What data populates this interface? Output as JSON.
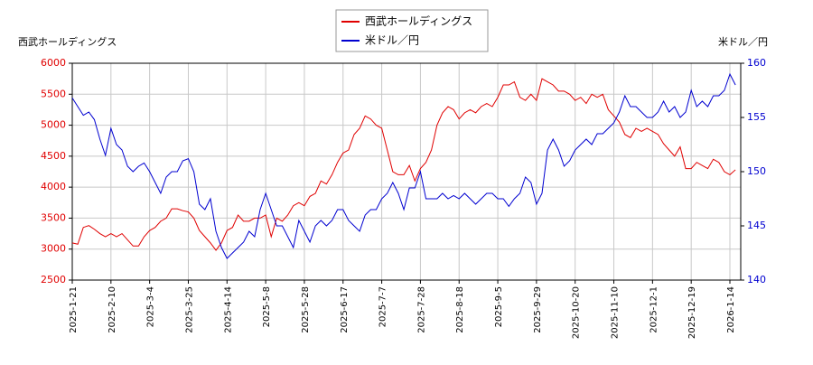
{
  "chart_data": {
    "type": "line",
    "y_label": "西武ホールディングス",
    "y2_label": "米ドル／円",
    "categories": [
      "2025-1-21",
      null,
      null,
      null,
      null,
      null,
      null,
      "2025-2-10",
      null,
      null,
      null,
      null,
      null,
      null,
      "2025-3-4",
      null,
      null,
      null,
      null,
      null,
      null,
      "2025-3-25",
      null,
      null,
      null,
      null,
      null,
      null,
      "2025-4-14",
      null,
      null,
      null,
      null,
      null,
      null,
      "2025-5-8",
      null,
      null,
      null,
      null,
      null,
      null,
      "2025-5-28",
      null,
      null,
      null,
      null,
      null,
      null,
      "2025-6-17",
      null,
      null,
      null,
      null,
      null,
      null,
      "2025-7-7",
      null,
      null,
      null,
      null,
      null,
      null,
      "2025-7-28",
      null,
      null,
      null,
      null,
      null,
      null,
      "2025-8-18",
      null,
      null,
      null,
      null,
      null,
      null,
      "2025-9-5",
      null,
      null,
      null,
      null,
      null,
      null,
      "2025-9-29",
      null,
      null,
      null,
      null,
      null,
      null,
      "2025-10-20",
      null,
      null,
      null,
      null,
      null,
      null,
      "2025-11-10",
      null,
      null,
      null,
      null,
      null,
      null,
      "2025-12-1",
      null,
      null,
      null,
      null,
      null,
      null,
      "2025-12-19",
      null,
      null,
      null,
      null,
      null,
      null,
      "2026-1-14",
      null
    ],
    "series": [
      {
        "name": "西武ホールディングス",
        "color": "#e00000",
        "axis": "y",
        "values": [
          3100,
          3080,
          3350,
          3380,
          3320,
          3250,
          3200,
          3250,
          3200,
          3250,
          3150,
          3050,
          3050,
          3200,
          3300,
          3350,
          3450,
          3500,
          3650,
          3650,
          3620,
          3600,
          3500,
          3300,
          3200,
          3100,
          2980,
          3100,
          3300,
          3350,
          3550,
          3450,
          3450,
          3500,
          3500,
          3550,
          3200,
          3500,
          3450,
          3550,
          3700,
          3750,
          3700,
          3850,
          3900,
          4100,
          4050,
          4200,
          4400,
          4550,
          4600,
          4850,
          4950,
          5150,
          5100,
          5000,
          4950,
          4600,
          4250,
          4200,
          4200,
          4350,
          4100,
          4300,
          4400,
          4600,
          5000,
          5200,
          5300,
          5250,
          5100,
          5200,
          5250,
          5200,
          5300,
          5350,
          5300,
          5450,
          5650,
          5650,
          5700,
          5450,
          5400,
          5500,
          5400,
          5750,
          5700,
          5650,
          5550,
          5550,
          5500,
          5400,
          5450,
          5350,
          5500,
          5450,
          5500,
          5250,
          5150,
          5050,
          4850,
          4800,
          4950,
          4900,
          4950,
          4900,
          4850,
          4700,
          4600,
          4500,
          4650,
          4300,
          4300,
          4400,
          4350,
          4300,
          4450,
          4400,
          4250,
          4200,
          4280
        ]
      },
      {
        "name": "米ドル／円",
        "color": "#0000d0",
        "axis": "y2",
        "values": [
          156.8,
          156,
          155.2,
          155.5,
          154.8,
          153,
          151.5,
          154,
          152.5,
          152,
          150.5,
          150,
          150.5,
          150.8,
          150,
          149,
          148,
          149.5,
          150,
          150,
          151,
          151.2,
          150,
          147,
          146.5,
          147.5,
          144.5,
          143,
          142,
          142.5,
          143,
          143.5,
          144.5,
          144,
          146.5,
          148,
          146.5,
          145,
          145,
          144,
          143,
          145.5,
          144.5,
          143.5,
          145,
          145.5,
          145,
          145.5,
          146.5,
          146.5,
          145.5,
          145,
          144.5,
          146,
          146.5,
          146.5,
          147.5,
          148,
          149,
          148,
          146.5,
          148.5,
          148.5,
          150,
          147.5,
          147.5,
          147.5,
          148,
          147.5,
          147.8,
          147.5,
          148,
          147.5,
          147,
          147.5,
          148,
          148,
          147.5,
          147.5,
          146.8,
          147.5,
          148,
          149.5,
          149,
          147,
          148,
          152,
          153,
          152,
          150.5,
          151,
          152,
          152.5,
          153,
          152.5,
          153.5,
          153.5,
          154,
          154.5,
          155.5,
          157,
          156,
          156,
          155.5,
          155,
          155,
          155.5,
          156.5,
          155.5,
          156,
          155,
          155.5,
          157.5,
          156,
          156.5,
          156,
          157,
          157,
          157.5,
          159,
          158
        ]
      }
    ],
    "ylim": [
      2500,
      6000
    ],
    "yticks": [
      2500,
      3000,
      3500,
      4000,
      4500,
      5000,
      5500,
      6000
    ],
    "y2lim": [
      140,
      160
    ],
    "y2ticks": [
      140,
      145,
      150,
      155,
      160
    ],
    "grid": true
  }
}
